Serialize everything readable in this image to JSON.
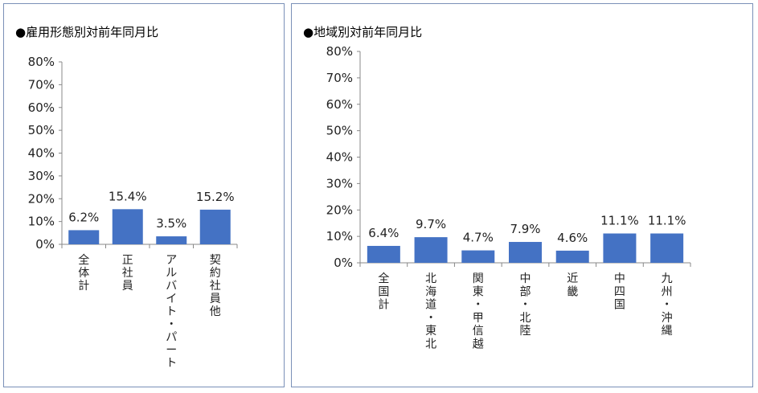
{
  "chart_data": [
    {
      "type": "bar",
      "title": "●雇用形態別対前年同月比",
      "categories": [
        "全体計",
        "正社員",
        "アルバイト・パート",
        "契約社員他"
      ],
      "values": [
        6.2,
        15.4,
        3.5,
        15.2
      ],
      "value_labels": [
        "6.2%",
        "15.4%",
        "3.5%",
        "15.2%"
      ],
      "ylim": [
        0,
        80
      ],
      "yticks": [
        "0%",
        "10%",
        "20%",
        "30%",
        "40%",
        "50%",
        "60%",
        "70%",
        "80%"
      ],
      "bar_color": "#4472c4",
      "grid": false,
      "legend": "none"
    },
    {
      "type": "bar",
      "title": "●地域別対前年同月比",
      "categories": [
        "全国計",
        "北海道・東北",
        "関東・甲信越",
        "中部・北陸",
        "近畿",
        "中四国",
        "九州・沖縄"
      ],
      "values": [
        6.4,
        9.7,
        4.7,
        7.9,
        4.6,
        11.1,
        11.1
      ],
      "value_labels": [
        "6.4%",
        "9.7%",
        "4.7%",
        "7.9%",
        "4.6%",
        "11.1%",
        "11.1%"
      ],
      "ylim": [
        0,
        80
      ],
      "yticks": [
        "0%",
        "10%",
        "20%",
        "30%",
        "40%",
        "50%",
        "60%",
        "70%",
        "80%"
      ],
      "bar_color": "#4472c4",
      "grid": false,
      "legend": "none"
    }
  ]
}
